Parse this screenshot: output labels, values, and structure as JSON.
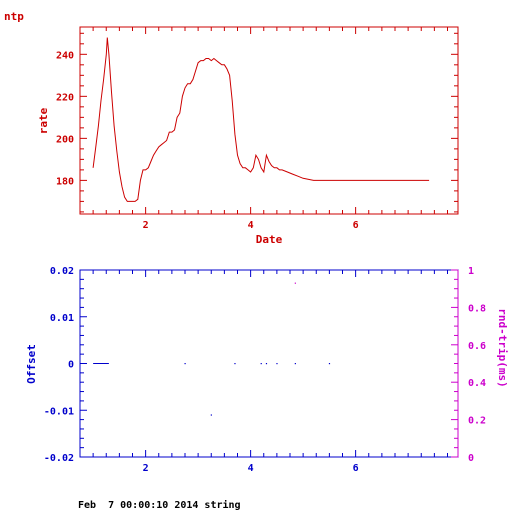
{
  "page": {
    "corner_label": "ntp",
    "footer": "Feb  7 00:00:10 2014 string"
  },
  "colors": {
    "top_chart": "#cc0000",
    "bottom_axes": "#0000cc",
    "bottom_right_axis": "#cc00cc",
    "background": "#ffffff"
  },
  "chart_data": [
    {
      "type": "line",
      "xlabel": "Date",
      "ylabel": "rate",
      "xlim": [
        0.75,
        7.95
      ],
      "ylim": [
        164,
        253
      ],
      "xticks": [
        2,
        4,
        6
      ],
      "xtick_labels": [
        "2",
        "4",
        "6"
      ],
      "yticks": [
        180,
        200,
        220,
        240
      ],
      "ytick_labels": [
        "180",
        "200",
        "220",
        "240"
      ],
      "grid": false,
      "series": [
        {
          "x": [
            1.0,
            1.05,
            1.1,
            1.15,
            1.2,
            1.25,
            1.27,
            1.3,
            1.35,
            1.4,
            1.45,
            1.5,
            1.55,
            1.6,
            1.65,
            1.7,
            1.75,
            1.8,
            1.85,
            1.9,
            1.95,
            2.0,
            2.05,
            2.1,
            2.15,
            2.2,
            2.25,
            2.3,
            2.35,
            2.4,
            2.45,
            2.5,
            2.55,
            2.6,
            2.65,
            2.7,
            2.75,
            2.8,
            2.85,
            2.9,
            2.95,
            3.0,
            3.05,
            3.1,
            3.15,
            3.2,
            3.25,
            3.3,
            3.35,
            3.4,
            3.45,
            3.5,
            3.55,
            3.6,
            3.65,
            3.7,
            3.75,
            3.8,
            3.85,
            3.9,
            3.95,
            4.0,
            4.05,
            4.1,
            4.15,
            4.2,
            4.25,
            4.3,
            4.35,
            4.4,
            4.45,
            4.5,
            4.55,
            4.6,
            4.7,
            4.8,
            4.9,
            5.0,
            5.2,
            5.5,
            5.8,
            6.0,
            6.2,
            6.5,
            7.0,
            7.4
          ],
          "y": [
            186,
            196,
            206,
            218,
            228,
            240,
            248,
            240,
            222,
            206,
            194,
            184,
            177,
            172,
            170,
            170,
            170,
            170,
            171,
            180,
            185,
            185,
            186,
            189,
            192,
            194,
            196,
            197,
            198,
            199,
            203,
            203,
            204,
            210,
            212,
            220,
            224,
            226,
            226,
            228,
            232,
            236,
            237,
            237,
            238,
            238,
            237,
            238,
            237,
            236,
            235,
            235,
            233,
            230,
            218,
            202,
            192,
            188,
            186,
            186,
            185,
            184,
            186,
            192,
            190,
            186,
            184,
            192,
            189,
            187,
            186,
            186,
            185,
            185,
            184,
            183,
            182,
            181,
            180,
            180,
            180,
            180,
            180,
            180,
            180,
            180
          ]
        }
      ]
    },
    {
      "type": "scatter",
      "xlabel": "",
      "ylabel": "Offset",
      "y2label": "rnd-trip(ms)",
      "xlim": [
        0.75,
        7.95
      ],
      "ylim": [
        -0.02,
        0.02
      ],
      "y2lim": [
        0,
        1
      ],
      "xticks": [
        2,
        4,
        6
      ],
      "xtick_labels": [
        "2",
        "4",
        "6"
      ],
      "yticks": [
        -0.02,
        -0.01,
        0,
        0.01,
        0.02
      ],
      "ytick_labels": [
        "-0.02",
        "-0.01",
        "0",
        "0.01",
        "0.02"
      ],
      "y2ticks": [
        0,
        0.2,
        0.4,
        0.6,
        0.8,
        1
      ],
      "y2tick_labels": [
        "0",
        "0.2",
        "0.4",
        "0.6",
        "0.8",
        "1"
      ],
      "grid": false,
      "offset_segment": {
        "x": [
          1.0,
          1.3
        ],
        "y": 0
      },
      "offset_points": {
        "x": [
          2.75,
          3.25,
          3.7,
          4.2,
          4.3,
          4.5,
          4.85,
          5.5
        ],
        "y": [
          0,
          -0.011,
          0,
          0,
          0,
          0,
          0,
          0
        ]
      },
      "roundtrip_points": {
        "x": [
          4.85
        ],
        "y": [
          0.93
        ]
      }
    }
  ]
}
